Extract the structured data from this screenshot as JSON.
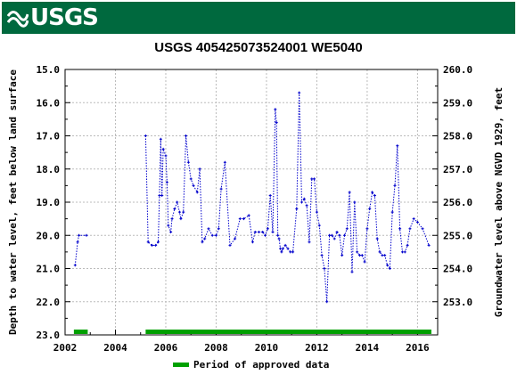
{
  "header": {
    "logo_text": "USGS",
    "brand_color": "#00693e"
  },
  "chart_data": {
    "type": "scatter",
    "title": "USGS 405425073524001 WE5040",
    "xlabel": "",
    "ylabel_left": "Depth to water level, feet below land surface",
    "ylabel_right": "Groundwater level above NGVD 1929, feet",
    "xlim": [
      2002,
      2016.8
    ],
    "ylim_left": [
      23.0,
      15.0
    ],
    "ylim_right_ticks": [
      253.0,
      254.0,
      255.0,
      256.0,
      257.0,
      258.0,
      259.0,
      260.0
    ],
    "x_ticks": [
      "2002",
      "2004",
      "2006",
      "2008",
      "2010",
      "2012",
      "2014",
      "2016"
    ],
    "y_ticks_left": [
      "15.0",
      "16.0",
      "17.0",
      "18.0",
      "19.0",
      "20.0",
      "21.0",
      "22.0",
      "23.0"
    ],
    "y_ticks_right": [
      "253.0",
      "254.0",
      "255.0",
      "256.0",
      "257.0",
      "258.0",
      "259.0",
      "260.0"
    ],
    "series_color": "#0000cc",
    "grid": true,
    "series": [
      {
        "x": [
          2002.4,
          2002.5,
          2002.55,
          2002.85
        ],
        "y": [
          20.9,
          20.2,
          20.0,
          20.0
        ]
      },
      {
        "x": [
          2005.2,
          2005.3,
          2005.45,
          2005.6,
          2005.7,
          2005.75,
          2005.8,
          2005.85,
          2005.9,
          2006.0,
          2006.05,
          2006.1,
          2006.2,
          2006.25,
          2006.35,
          2006.45,
          2006.55,
          2006.6,
          2006.7,
          2006.8,
          2006.9,
          2007.0,
          2007.1,
          2007.25,
          2007.35,
          2007.45,
          2007.55,
          2007.7,
          2007.85,
          2008.0,
          2008.1,
          2008.2,
          2008.35,
          2008.55,
          2008.75,
          2008.95,
          2009.1,
          2009.3,
          2009.45,
          2009.55,
          2009.7,
          2009.85,
          2009.95,
          2010.05,
          2010.15,
          2010.25,
          2010.35,
          2010.4,
          2010.45,
          2010.5,
          2010.55,
          2010.6,
          2010.65,
          2010.75,
          2010.85,
          2010.95,
          2011.05,
          2011.2,
          2011.3,
          2011.4,
          2011.5,
          2011.6,
          2011.7,
          2011.8,
          2011.9,
          2012.0,
          2012.1,
          2012.2,
          2012.3,
          2012.4,
          2012.5,
          2012.6,
          2012.7,
          2012.8,
          2012.9,
          2013.0,
          2013.1,
          2013.2,
          2013.3,
          2013.4,
          2013.5,
          2013.6,
          2013.7,
          2013.8,
          2013.9,
          2014.0,
          2014.1,
          2014.2,
          2014.3,
          2014.4,
          2014.5,
          2014.6,
          2014.7,
          2014.8,
          2014.9,
          2015.0,
          2015.1,
          2015.2,
          2015.3,
          2015.4,
          2015.5,
          2015.6,
          2015.7,
          2015.85,
          2016.0,
          2016.2,
          2016.45
        ],
        "y": [
          17.0,
          20.2,
          20.3,
          20.3,
          20.2,
          18.8,
          17.1,
          18.8,
          17.4,
          17.6,
          18.4,
          19.7,
          19.9,
          19.5,
          19.2,
          19.0,
          19.3,
          19.5,
          19.3,
          17.0,
          17.8,
          18.3,
          18.5,
          18.7,
          18.0,
          20.2,
          20.1,
          19.8,
          20.0,
          20.0,
          19.8,
          18.6,
          17.8,
          20.3,
          20.1,
          19.5,
          19.5,
          19.4,
          20.2,
          19.9,
          19.9,
          19.9,
          20.0,
          19.8,
          18.8,
          19.9,
          16.2,
          16.6,
          20.0,
          20.1,
          20.4,
          20.5,
          20.4,
          20.3,
          20.4,
          20.5,
          20.5,
          19.2,
          15.7,
          19.0,
          18.9,
          19.1,
          20.2,
          18.3,
          18.3,
          19.3,
          19.7,
          20.6,
          21.0,
          22.0,
          20.0,
          20.0,
          20.1,
          19.9,
          20.0,
          20.6,
          20.0,
          19.8,
          18.7,
          21.1,
          19.0,
          20.5,
          20.6,
          20.6,
          20.8,
          19.8,
          19.2,
          18.7,
          18.8,
          20.1,
          20.5,
          20.6,
          20.6,
          20.9,
          21.0,
          19.3,
          18.5,
          17.3,
          19.8,
          20.5,
          20.5,
          20.3,
          19.8,
          19.5,
          19.6,
          19.8,
          20.3
        ]
      }
    ],
    "approved_periods": [
      [
        2002.35,
        2002.9
      ],
      [
        2005.2,
        2016.55
      ]
    ],
    "approved_color": "#00a000",
    "legend": {
      "label": "Period of approved data",
      "placement": "bottom-center"
    }
  }
}
